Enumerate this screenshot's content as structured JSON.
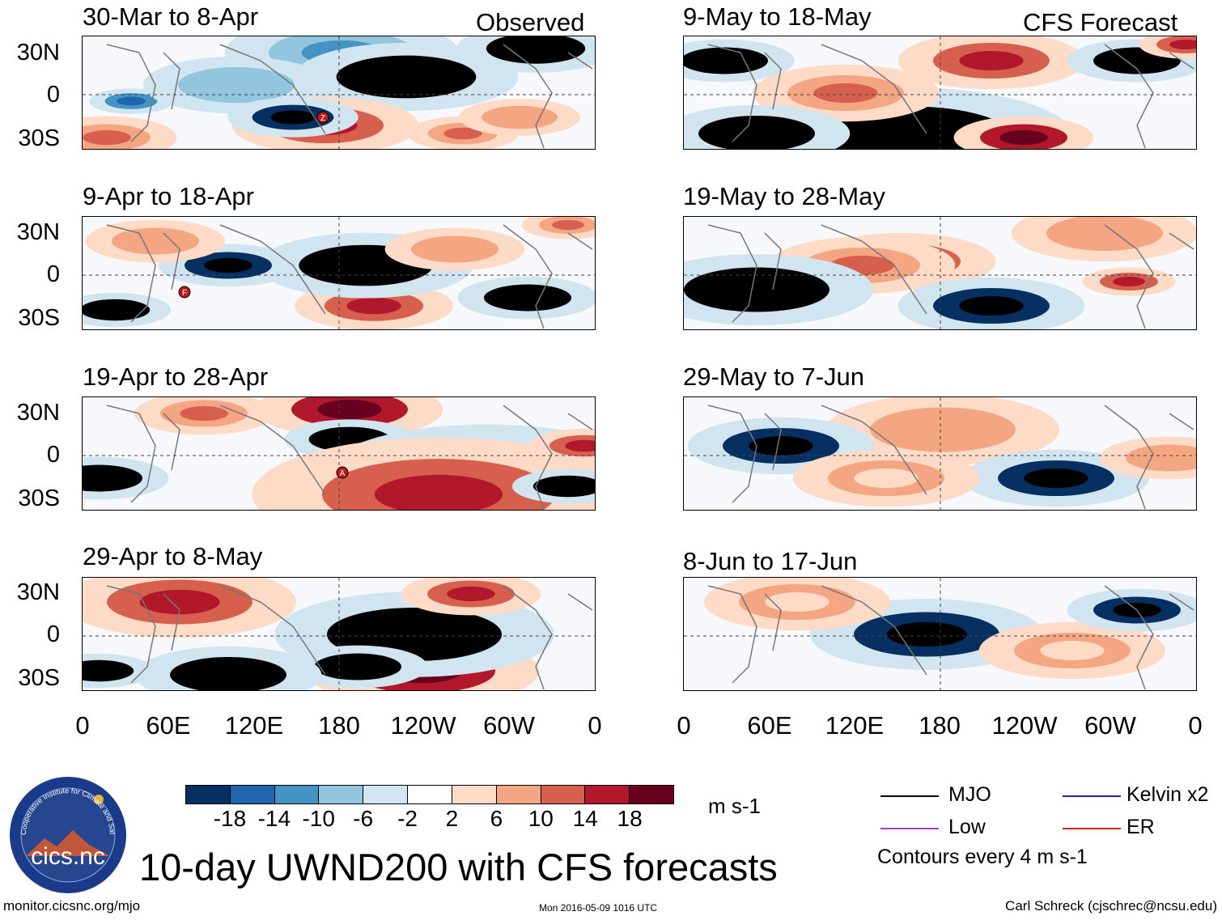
{
  "panels_observed": [
    {
      "title": "30-Mar to 8-Apr"
    },
    {
      "title": "9-Apr to 18-Apr"
    },
    {
      "title": "19-Apr to 28-Apr"
    },
    {
      "title": "29-Apr to 8-May"
    }
  ],
  "panels_forecast": [
    {
      "title": "9-May to 18-May"
    },
    {
      "title": "19-May to 28-May"
    },
    {
      "title": "29-May to 7-Jun"
    },
    {
      "title": "8-Jun to 17-Jun"
    }
  ],
  "corner_labels": {
    "observed": "Observed",
    "forecast": "CFS Forecast"
  },
  "lat_labels": [
    "30N",
    "0",
    "30S"
  ],
  "lon_labels": [
    "0",
    "60E",
    "120E",
    "180",
    "120W",
    "60W",
    "0"
  ],
  "colorbar": {
    "colors": [
      "#053061",
      "#2166ac",
      "#4393c3",
      "#92c5de",
      "#d1e5f0",
      "#ffffff",
      "#fddbc7",
      "#f4a582",
      "#d6604d",
      "#b2182b",
      "#67001f"
    ],
    "labels": [
      "-18",
      "-14",
      "-10",
      "-6",
      "-2",
      "2",
      "6",
      "10",
      "14",
      "18"
    ],
    "units": "m s-1"
  },
  "legend": {
    "mjo": {
      "label": "MJO",
      "color": "#000000"
    },
    "kelvin": {
      "label": "Kelvin x2",
      "color": "#2222cc"
    },
    "low": {
      "label": "Low",
      "color": "#a040d0"
    },
    "er": {
      "label": "ER",
      "color": "#dd2222"
    },
    "contours": "Contours every 4 m s-1"
  },
  "storm_markers": [
    "Z",
    "F",
    "A"
  ],
  "logo": {
    "text": "cics.nc",
    "ring_text": "Cooperative Institute for Climate and Satellites"
  },
  "main_title": "10-day UWND200 with CFS forecasts",
  "footer": {
    "url": "monitor.cicsnc.org/mjo",
    "timestamp": "Mon 2016-05-09 1016 UTC",
    "author": "Carl Schreck (cjschrec@ncsu.edu)"
  }
}
